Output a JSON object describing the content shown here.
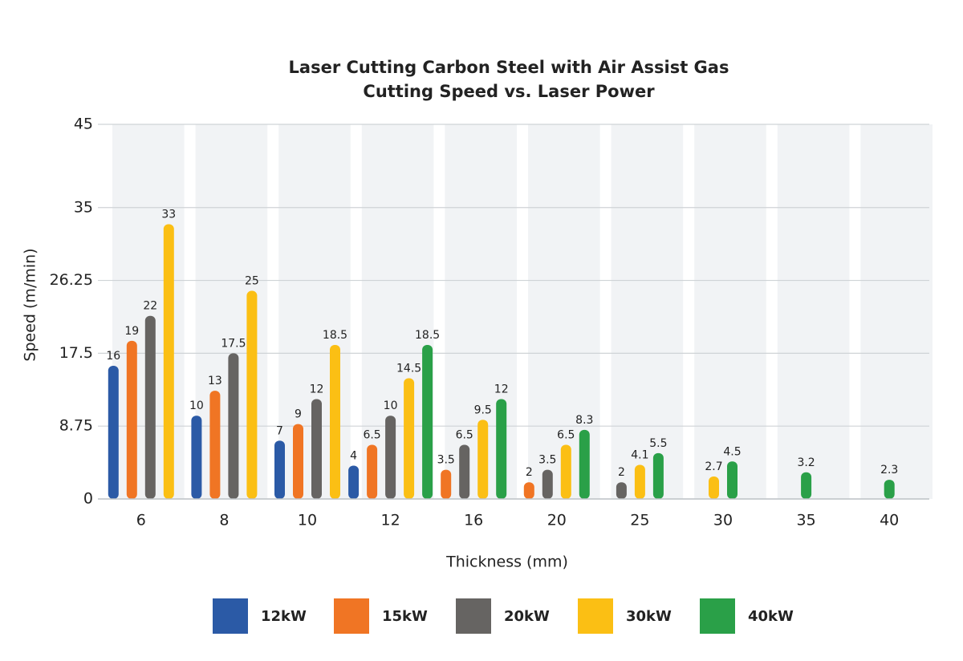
{
  "chart_data": {
    "type": "bar",
    "title": "Laser Cutting Carbon Steel with Air Assist Gas",
    "subtitle": "Cutting Speed vs. Laser Power",
    "x_label": "Thickness (mm)",
    "y_label": "Speed (m/min)",
    "categories": [
      "6",
      "8",
      "10",
      "12",
      "16",
      "20",
      "25",
      "30",
      "35",
      "40"
    ],
    "series": [
      {
        "name": "12kW",
        "color": "#2b5aa6",
        "values": [
          16,
          10,
          7,
          4,
          null,
          null,
          null,
          null,
          null,
          null
        ]
      },
      {
        "name": "15kW",
        "color": "#f07524",
        "values": [
          19,
          13,
          9,
          6.5,
          3.5,
          2,
          null,
          null,
          null,
          null
        ]
      },
      {
        "name": "20kW",
        "color": "#666462",
        "values": [
          22,
          17.5,
          12,
          10,
          6.5,
          3.5,
          2,
          null,
          null,
          null
        ]
      },
      {
        "name": "30kW",
        "color": "#fbbf14",
        "values": [
          33,
          25,
          18.5,
          14.5,
          9.5,
          6.5,
          4.1,
          2.7,
          null,
          null
        ]
      },
      {
        "name": "40kW",
        "color": "#2aa048",
        "values": [
          null,
          null,
          null,
          18.5,
          12,
          8.3,
          5.5,
          4.5,
          3.2,
          2.3
        ]
      }
    ],
    "ylim": [
      0,
      45
    ],
    "yticks": [
      0,
      8.75,
      17.5,
      26.25,
      35,
      45
    ],
    "grid": true
  }
}
